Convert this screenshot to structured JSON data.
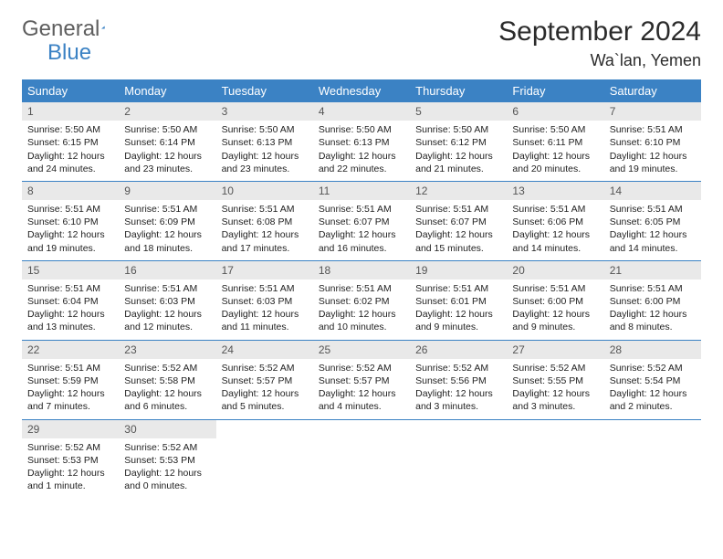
{
  "brand": {
    "part1": "General",
    "part2": "Blue"
  },
  "title": "September 2024",
  "location": "Wa`lan, Yemen",
  "colors": {
    "header_bg": "#3b82c4",
    "daynum_bg": "#e9e9e9",
    "row_border": "#3b82c4",
    "text": "#222222"
  },
  "weekdays": [
    "Sunday",
    "Monday",
    "Tuesday",
    "Wednesday",
    "Thursday",
    "Friday",
    "Saturday"
  ],
  "days": [
    {
      "n": "1",
      "sr": "5:50 AM",
      "ss": "6:15 PM",
      "dl": "12 hours and 24 minutes."
    },
    {
      "n": "2",
      "sr": "5:50 AM",
      "ss": "6:14 PM",
      "dl": "12 hours and 23 minutes."
    },
    {
      "n": "3",
      "sr": "5:50 AM",
      "ss": "6:13 PM",
      "dl": "12 hours and 23 minutes."
    },
    {
      "n": "4",
      "sr": "5:50 AM",
      "ss": "6:13 PM",
      "dl": "12 hours and 22 minutes."
    },
    {
      "n": "5",
      "sr": "5:50 AM",
      "ss": "6:12 PM",
      "dl": "12 hours and 21 minutes."
    },
    {
      "n": "6",
      "sr": "5:50 AM",
      "ss": "6:11 PM",
      "dl": "12 hours and 20 minutes."
    },
    {
      "n": "7",
      "sr": "5:51 AM",
      "ss": "6:10 PM",
      "dl": "12 hours and 19 minutes."
    },
    {
      "n": "8",
      "sr": "5:51 AM",
      "ss": "6:10 PM",
      "dl": "12 hours and 19 minutes."
    },
    {
      "n": "9",
      "sr": "5:51 AM",
      "ss": "6:09 PM",
      "dl": "12 hours and 18 minutes."
    },
    {
      "n": "10",
      "sr": "5:51 AM",
      "ss": "6:08 PM",
      "dl": "12 hours and 17 minutes."
    },
    {
      "n": "11",
      "sr": "5:51 AM",
      "ss": "6:07 PM",
      "dl": "12 hours and 16 minutes."
    },
    {
      "n": "12",
      "sr": "5:51 AM",
      "ss": "6:07 PM",
      "dl": "12 hours and 15 minutes."
    },
    {
      "n": "13",
      "sr": "5:51 AM",
      "ss": "6:06 PM",
      "dl": "12 hours and 14 minutes."
    },
    {
      "n": "14",
      "sr": "5:51 AM",
      "ss": "6:05 PM",
      "dl": "12 hours and 14 minutes."
    },
    {
      "n": "15",
      "sr": "5:51 AM",
      "ss": "6:04 PM",
      "dl": "12 hours and 13 minutes."
    },
    {
      "n": "16",
      "sr": "5:51 AM",
      "ss": "6:03 PM",
      "dl": "12 hours and 12 minutes."
    },
    {
      "n": "17",
      "sr": "5:51 AM",
      "ss": "6:03 PM",
      "dl": "12 hours and 11 minutes."
    },
    {
      "n": "18",
      "sr": "5:51 AM",
      "ss": "6:02 PM",
      "dl": "12 hours and 10 minutes."
    },
    {
      "n": "19",
      "sr": "5:51 AM",
      "ss": "6:01 PM",
      "dl": "12 hours and 9 minutes."
    },
    {
      "n": "20",
      "sr": "5:51 AM",
      "ss": "6:00 PM",
      "dl": "12 hours and 9 minutes."
    },
    {
      "n": "21",
      "sr": "5:51 AM",
      "ss": "6:00 PM",
      "dl": "12 hours and 8 minutes."
    },
    {
      "n": "22",
      "sr": "5:51 AM",
      "ss": "5:59 PM",
      "dl": "12 hours and 7 minutes."
    },
    {
      "n": "23",
      "sr": "5:52 AM",
      "ss": "5:58 PM",
      "dl": "12 hours and 6 minutes."
    },
    {
      "n": "24",
      "sr": "5:52 AM",
      "ss": "5:57 PM",
      "dl": "12 hours and 5 minutes."
    },
    {
      "n": "25",
      "sr": "5:52 AM",
      "ss": "5:57 PM",
      "dl": "12 hours and 4 minutes."
    },
    {
      "n": "26",
      "sr": "5:52 AM",
      "ss": "5:56 PM",
      "dl": "12 hours and 3 minutes."
    },
    {
      "n": "27",
      "sr": "5:52 AM",
      "ss": "5:55 PM",
      "dl": "12 hours and 3 minutes."
    },
    {
      "n": "28",
      "sr": "5:52 AM",
      "ss": "5:54 PM",
      "dl": "12 hours and 2 minutes."
    },
    {
      "n": "29",
      "sr": "5:52 AM",
      "ss": "5:53 PM",
      "dl": "12 hours and 1 minute."
    },
    {
      "n": "30",
      "sr": "5:52 AM",
      "ss": "5:53 PM",
      "dl": "12 hours and 0 minutes."
    }
  ],
  "labels": {
    "sunrise": "Sunrise:",
    "sunset": "Sunset:",
    "daylight": "Daylight:"
  }
}
